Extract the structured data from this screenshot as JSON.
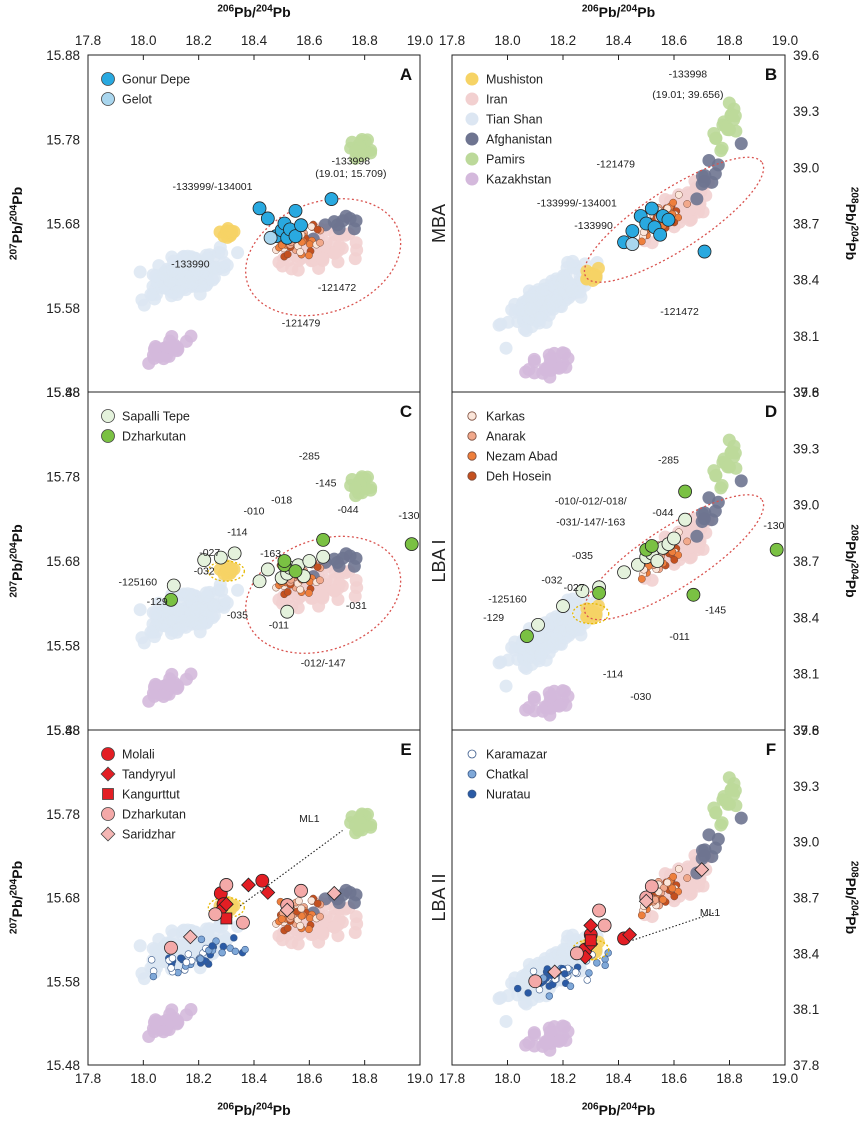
{
  "figure": {
    "x_axis_label": {
      "base": "Pb",
      "sup1": "206",
      "sup2": "204",
      "text": "206Pb/204Pb"
    },
    "y_left_label": {
      "base": "Pb",
      "sup1": "207",
      "sup2": "204",
      "text": "207Pb/204Pb"
    },
    "y_right_label": {
      "base": "Pb",
      "sup1": "208",
      "sup2": "204",
      "text": "208Pb/204Pb"
    },
    "x_ticks": [
      "17.8",
      "18.0",
      "18.2",
      "18.4",
      "18.6",
      "18.8",
      "19.0"
    ],
    "y_left_ticks": [
      "15.88",
      "15.78",
      "15.68",
      "15.58",
      "15.48"
    ],
    "y_right_ticks": [
      "39.6",
      "39.3",
      "39.0",
      "38.7",
      "38.4",
      "38.1",
      "37.8"
    ],
    "row_labels": [
      "MBA",
      "LBA I",
      "LBA II"
    ]
  },
  "colors": {
    "tian_shan": "#dce6f2",
    "iran": "#f2d0d0",
    "mushiston": "#f6d365",
    "afghanistan": "#6e7490",
    "pamirs": "#bcd99a",
    "kazakhstan": "#d4b9dc",
    "gonur": "#29a9e0",
    "gelot": "#a9d6ee",
    "sapalli": "#e4f2dc",
    "dzharkutan_green": "#7ac143",
    "karkas": "#fbe6da",
    "anarak": "#f1a98c",
    "nezam": "#ee7f3c",
    "deh_hosein": "#c4501f",
    "molali": "#e31e24",
    "dzharkutan_pink": "#f4a9a8",
    "saridzhar": "#f5b6b4",
    "karamazar": "#ffffff",
    "chatkal": "#7fa8d8",
    "nuratau": "#2a5aa5"
  },
  "chart_data": [
    {
      "id": "A",
      "type": "scatter",
      "xlim": [
        17.8,
        19.0
      ],
      "ylim": [
        15.48,
        15.88
      ],
      "period": "MBA",
      "xlabel": "206Pb/204Pb",
      "ylabel": "207Pb/204Pb",
      "legend": [
        {
          "name": "Gonur Depe",
          "color": "#29a9e0"
        },
        {
          "name": "Gelot",
          "color": "#a9d6ee"
        }
      ],
      "series": [
        {
          "name": "Gonur Depe",
          "points": [
            [
              18.42,
              15.698
            ],
            [
              18.45,
              15.686
            ],
            [
              18.48,
              15.665
            ],
            [
              18.5,
              15.672
            ],
            [
              18.51,
              15.68
            ],
            [
              18.52,
              15.663
            ],
            [
              18.53,
              15.673
            ],
            [
              18.55,
              15.665
            ],
            [
              18.55,
              15.695
            ],
            [
              18.57,
              15.678
            ],
            [
              18.68,
              15.709
            ]
          ]
        },
        {
          "name": "Gelot",
          "points": [
            [
              18.46,
              15.663
            ]
          ]
        }
      ],
      "annotations": [
        {
          "text": "-133998",
          "x": 18.75,
          "y": 15.75
        },
        {
          "text": "(19.01; 15.709)",
          "x": 18.75,
          "y": 15.735
        },
        {
          "text": "-133999/-134001",
          "x": 18.25,
          "y": 15.72
        },
        {
          "text": "-133990",
          "x": 18.17,
          "y": 15.628
        },
        {
          "text": "-121472",
          "x": 18.7,
          "y": 15.6
        },
        {
          "text": "-121479",
          "x": 18.57,
          "y": 15.558
        }
      ]
    },
    {
      "id": "B",
      "type": "scatter",
      "xlim": [
        17.8,
        19.0
      ],
      "ylim": [
        37.8,
        39.6
      ],
      "period": "MBA",
      "xlabel": "206Pb/204Pb",
      "ylabel": "208Pb/204Pb",
      "legend": [
        {
          "name": "Mushiston",
          "color": "#f6d365"
        },
        {
          "name": "Iran",
          "color": "#f2d0d0"
        },
        {
          "name": "Tian Shan",
          "color": "#dce6f2"
        },
        {
          "name": "Afghanistan",
          "color": "#6e7490"
        },
        {
          "name": "Pamirs",
          "color": "#bcd99a"
        },
        {
          "name": "Kazakhstan",
          "color": "#d4b9dc"
        }
      ],
      "series": [
        {
          "name": "Gonur Depe",
          "points": [
            [
              18.42,
              38.6
            ],
            [
              18.45,
              38.66
            ],
            [
              18.48,
              38.74
            ],
            [
              18.5,
              38.7
            ],
            [
              18.52,
              38.78
            ],
            [
              18.53,
              38.68
            ],
            [
              18.55,
              38.64
            ],
            [
              18.56,
              38.74
            ],
            [
              18.58,
              38.72
            ],
            [
              18.71,
              38.55
            ]
          ]
        },
        {
          "name": "Gelot",
          "points": [
            [
              18.45,
              38.59
            ]
          ]
        }
      ],
      "annotations": [
        {
          "text": "-133998",
          "x": 18.65,
          "y": 39.48
        },
        {
          "text": "(19.01; 39.656)",
          "x": 18.65,
          "y": 39.37
        },
        {
          "text": "-121479",
          "x": 18.39,
          "y": 39.0
        },
        {
          "text": "-133999/-134001",
          "x": 18.25,
          "y": 38.79
        },
        {
          "text": "-133990",
          "x": 18.31,
          "y": 38.67
        },
        {
          "text": "-121472",
          "x": 18.62,
          "y": 38.21
        }
      ]
    },
    {
      "id": "C",
      "type": "scatter",
      "xlim": [
        17.8,
        19.0
      ],
      "ylim": [
        15.48,
        15.88
      ],
      "period": "LBA I",
      "xlabel": "206Pb/204Pb",
      "ylabel": "207Pb/204Pb",
      "legend": [
        {
          "name": "Sapalli Tepe",
          "color": "#e4f2dc"
        },
        {
          "name": "Dzharkutan",
          "color": "#7ac143"
        }
      ],
      "series": [
        {
          "name": "Sapalli Tepe",
          "points": [
            [
              18.11,
              15.651
            ],
            [
              18.22,
              15.681
            ],
            [
              18.28,
              15.684
            ],
            [
              18.33,
              15.689
            ],
            [
              18.42,
              15.656
            ],
            [
              18.45,
              15.67
            ],
            [
              18.5,
              15.66
            ],
            [
              18.52,
              15.665
            ],
            [
              18.53,
              15.672
            ],
            [
              18.56,
              15.675
            ],
            [
              18.6,
              15.68
            ],
            [
              18.65,
              15.685
            ],
            [
              18.58,
              15.662
            ],
            [
              18.52,
              15.62
            ]
          ]
        },
        {
          "name": "Dzharkutan",
          "points": [
            [
              18.1,
              15.634
            ],
            [
              18.51,
              15.675
            ],
            [
              18.51,
              15.68
            ],
            [
              18.55,
              15.668
            ],
            [
              18.65,
              15.705
            ],
            [
              18.97,
              15.7
            ]
          ]
        }
      ],
      "annotations": [
        {
          "text": "-285",
          "x": 18.6,
          "y": 15.8
        },
        {
          "text": "-145",
          "x": 18.66,
          "y": 15.768
        },
        {
          "text": "-044",
          "x": 18.74,
          "y": 15.737
        },
        {
          "text": "-018",
          "x": 18.5,
          "y": 15.748
        },
        {
          "text": "-010",
          "x": 18.4,
          "y": 15.735
        },
        {
          "text": "-114",
          "x": 18.34,
          "y": 15.71
        },
        {
          "text": "-027",
          "x": 18.24,
          "y": 15.686
        },
        {
          "text": "-032",
          "x": 18.22,
          "y": 15.664
        },
        {
          "text": "-163",
          "x": 18.46,
          "y": 15.685
        },
        {
          "text": "-125160",
          "x": 17.98,
          "y": 15.651
        },
        {
          "text": "-129",
          "x": 18.05,
          "y": 15.628
        },
        {
          "text": "-035",
          "x": 18.34,
          "y": 15.612
        },
        {
          "text": "-011",
          "x": 18.49,
          "y": 15.6
        },
        {
          "text": "-031",
          "x": 18.77,
          "y": 15.623
        },
        {
          "text": "-012/-147",
          "x": 18.65,
          "y": 15.555
        },
        {
          "text": "-130",
          "x": 18.96,
          "y": 15.73
        }
      ]
    },
    {
      "id": "D",
      "type": "scatter",
      "xlim": [
        17.8,
        19.0
      ],
      "ylim": [
        37.8,
        39.6
      ],
      "period": "LBA I",
      "xlabel": "206Pb/204Pb",
      "ylabel": "208Pb/204Pb",
      "legend": [
        {
          "name": "Karkas",
          "color": "#fbe6da"
        },
        {
          "name": "Anarak",
          "color": "#f1a98c"
        },
        {
          "name": "Nezam Abad",
          "color": "#ee7f3c"
        },
        {
          "name": "Deh Hosein",
          "color": "#c4501f"
        }
      ],
      "series": [
        {
          "name": "Sapalli Tepe",
          "points": [
            [
              18.11,
              38.36
            ],
            [
              18.2,
              38.46
            ],
            [
              18.27,
              38.54
            ],
            [
              18.33,
              38.56
            ],
            [
              18.42,
              38.64
            ],
            [
              18.47,
              38.68
            ],
            [
              18.5,
              38.72
            ],
            [
              18.52,
              38.74
            ],
            [
              18.54,
              38.7
            ],
            [
              18.56,
              38.77
            ],
            [
              18.58,
              38.79
            ],
            [
              18.6,
              38.82
            ],
            [
              18.64,
              38.92
            ]
          ]
        },
        {
          "name": "Dzharkutan",
          "points": [
            [
              18.07,
              38.3
            ],
            [
              18.33,
              38.53
            ],
            [
              18.5,
              38.76
            ],
            [
              18.52,
              38.78
            ],
            [
              18.64,
              39.07
            ],
            [
              18.67,
              38.52
            ],
            [
              18.97,
              38.76
            ]
          ]
        }
      ],
      "annotations": [
        {
          "text": "-285",
          "x": 18.58,
          "y": 39.22
        },
        {
          "text": "-044",
          "x": 18.56,
          "y": 38.94
        },
        {
          "text": "-010/-012/-018/",
          "x": 18.3,
          "y": 39.0
        },
        {
          "text": "-031/-147/-163",
          "x": 18.3,
          "y": 38.89
        },
        {
          "text": "-035",
          "x": 18.27,
          "y": 38.71
        },
        {
          "text": "-032",
          "x": 18.16,
          "y": 38.58
        },
        {
          "text": "-027",
          "x": 18.24,
          "y": 38.54
        },
        {
          "text": "-125160",
          "x": 18.0,
          "y": 38.48
        },
        {
          "text": "-129",
          "x": 17.95,
          "y": 38.38
        },
        {
          "text": "-114",
          "x": 18.38,
          "y": 38.08
        },
        {
          "text": "-030",
          "x": 18.48,
          "y": 37.96
        },
        {
          "text": "-011",
          "x": 18.62,
          "y": 38.28
        },
        {
          "text": "-145",
          "x": 18.75,
          "y": 38.42
        },
        {
          "text": "-130",
          "x": 18.96,
          "y": 38.87
        }
      ]
    },
    {
      "id": "E",
      "type": "scatter",
      "xlim": [
        17.8,
        19.0
      ],
      "ylim": [
        15.48,
        15.88
      ],
      "period": "LBA II",
      "xlabel": "206Pb/204Pb",
      "ylabel": "207Pb/204Pb",
      "legend": [
        {
          "name": "Molali",
          "color": "#e31e24",
          "marker": "circle"
        },
        {
          "name": "Tandyryul",
          "color": "#e31e24",
          "marker": "diamond"
        },
        {
          "name": "Kangurttut",
          "color": "#e31e24",
          "marker": "square"
        },
        {
          "name": "Dzharkutan",
          "color": "#f4a9a8",
          "marker": "circle"
        },
        {
          "name": "Saridzhar",
          "color": "#f5b6b4",
          "marker": "diamond"
        }
      ],
      "series": [
        {
          "name": "Molali",
          "points": [
            [
              18.28,
              15.685
            ],
            [
              18.29,
              15.672
            ],
            [
              18.43,
              15.7
            ]
          ]
        },
        {
          "name": "Tandyryul",
          "points": [
            [
              18.28,
              15.665
            ],
            [
              18.3,
              15.672
            ],
            [
              18.38,
              15.695
            ],
            [
              18.45,
              15.686
            ]
          ]
        },
        {
          "name": "Kangurttut",
          "points": [
            [
              18.3,
              15.655
            ]
          ]
        },
        {
          "name": "Dzharkutan",
          "points": [
            [
              18.1,
              15.62
            ],
            [
              18.26,
              15.66
            ],
            [
              18.3,
              15.695
            ],
            [
              18.36,
              15.65
            ],
            [
              18.52,
              15.671
            ],
            [
              18.57,
              15.688
            ]
          ]
        },
        {
          "name": "Saridzhar",
          "points": [
            [
              18.17,
              15.633
            ],
            [
              18.52,
              15.665
            ],
            [
              18.69,
              15.685
            ]
          ]
        }
      ],
      "annotations": [
        {
          "text": "ML1",
          "x": 18.6,
          "y": 15.77
        }
      ]
    },
    {
      "id": "F",
      "type": "scatter",
      "xlim": [
        17.8,
        19.0
      ],
      "ylim": [
        37.8,
        39.6
      ],
      "period": "LBA II",
      "xlabel": "206Pb/204Pb",
      "ylabel": "208Pb/204Pb",
      "legend": [
        {
          "name": "Karamazar",
          "color": "#ffffff"
        },
        {
          "name": "Chatkal",
          "color": "#7fa8d8"
        },
        {
          "name": "Nuratau",
          "color": "#2a5aa5"
        }
      ],
      "series": [
        {
          "name": "Molali",
          "points": [
            [
              18.28,
              38.42
            ],
            [
              18.3,
              38.5
            ],
            [
              18.42,
              38.48
            ]
          ]
        },
        {
          "name": "Tandyryul",
          "points": [
            [
              18.28,
              38.38
            ],
            [
              18.3,
              38.45
            ],
            [
              18.44,
              38.5
            ],
            [
              18.3,
              38.55
            ]
          ]
        },
        {
          "name": "Kangurttut",
          "points": [
            [
              18.3,
              38.47
            ]
          ]
        },
        {
          "name": "Dzharkutan",
          "points": [
            [
              18.1,
              38.25
            ],
            [
              18.25,
              38.4
            ],
            [
              18.33,
              38.63
            ],
            [
              18.35,
              38.55
            ],
            [
              18.5,
              38.7
            ],
            [
              18.52,
              38.76
            ]
          ]
        },
        {
          "name": "Saridzhar",
          "points": [
            [
              18.17,
              38.3
            ],
            [
              18.5,
              38.68
            ],
            [
              18.7,
              38.85
            ]
          ]
        }
      ],
      "annotations": [
        {
          "text": "ML1",
          "x": 18.73,
          "y": 38.6
        }
      ]
    }
  ]
}
